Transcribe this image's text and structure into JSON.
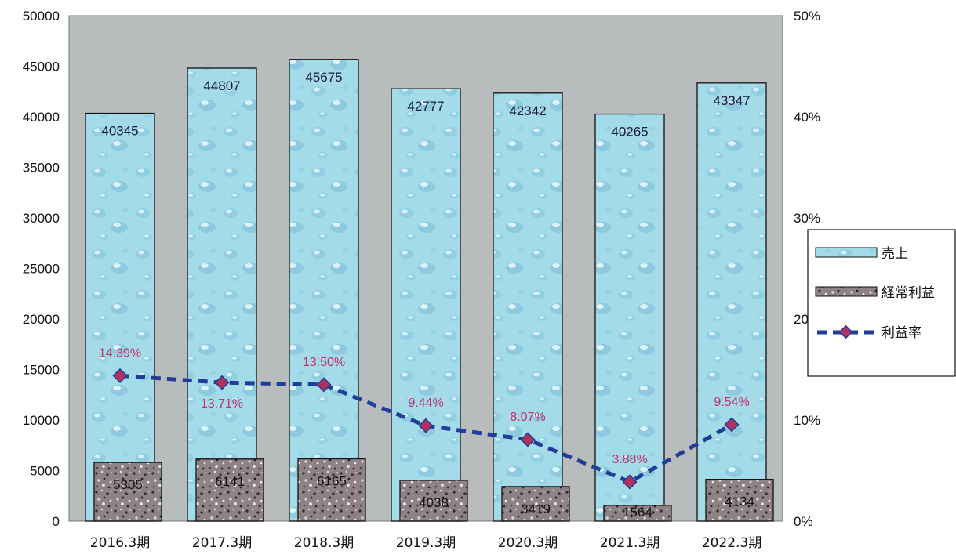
{
  "chart_data": {
    "type": "bar",
    "categories": [
      "2016.3期",
      "2017.3期",
      "2018.3期",
      "2019.3期",
      "2020.3期",
      "2021.3期",
      "2022.3期"
    ],
    "series": [
      {
        "name": "売上",
        "type": "bar",
        "axis": "left",
        "values": [
          40345,
          44807,
          45675,
          42777,
          42342,
          40265,
          43347
        ],
        "color": "#9fd8e8"
      },
      {
        "name": "経常利益",
        "type": "bar",
        "axis": "left",
        "values": [
          5805,
          6141,
          6165,
          4038,
          3419,
          1564,
          4134
        ],
        "color": "#8a7a7e"
      },
      {
        "name": "利益率",
        "type": "line",
        "axis": "right",
        "values": [
          14.39,
          13.71,
          13.5,
          9.44,
          8.07,
          3.88,
          9.54
        ],
        "labels": [
          "14.39%",
          "13.71%",
          "13.50%",
          "9.44%",
          "8.07%",
          "3.88%",
          "9.54%"
        ],
        "color": "#1f3d99",
        "marker_color": "#b03060"
      }
    ],
    "y_left": {
      "ylim": [
        0,
        50000
      ],
      "ticks": [
        "0",
        "5000",
        "10000",
        "15000",
        "20000",
        "25000",
        "30000",
        "35000",
        "40000",
        "45000",
        "50000"
      ]
    },
    "y_right": {
      "ylim": [
        0,
        50
      ],
      "ticks": [
        "0%",
        "10%",
        "20",
        "30%",
        "40%",
        "50%"
      ]
    },
    "grid": false,
    "legend": {
      "placement": "right",
      "items": [
        "売上",
        "経常利益",
        "利益率"
      ]
    },
    "plot_background": "#b9bcbc"
  }
}
